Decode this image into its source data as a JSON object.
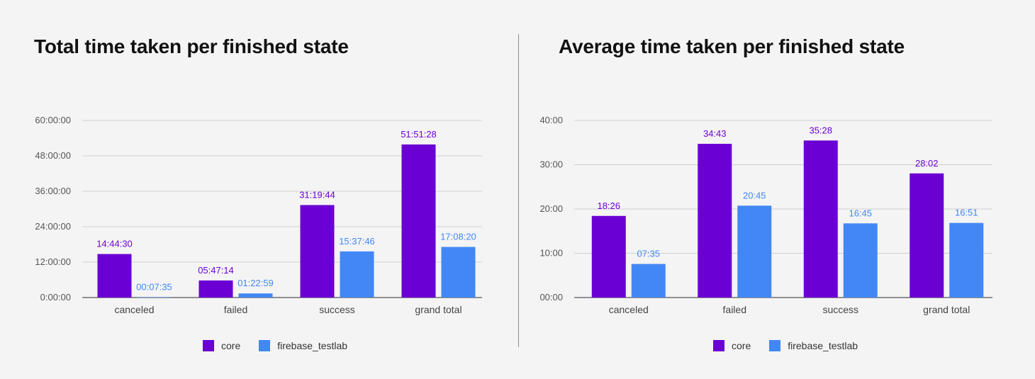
{
  "colors": {
    "core": "#6a00d4",
    "firebase_testlab": "#4287f5"
  },
  "legend": {
    "items": [
      {
        "label": "core",
        "color": "#6a00d4"
      },
      {
        "label": "firebase_testlab",
        "color": "#4287f5"
      }
    ]
  },
  "chart_data": [
    {
      "type": "bar",
      "title": "Total time taken per finished state",
      "categories": [
        "canceled",
        "failed",
        "success",
        "grand total"
      ],
      "yticks": [
        "0:00:00",
        "12:00:00",
        "24:00:00",
        "36:00:00",
        "48:00:00",
        "60:00:00"
      ],
      "ylim": [
        0,
        60
      ],
      "grid": true,
      "legend_position": "bottom",
      "series": [
        {
          "name": "core",
          "color": "#6a00d4",
          "values": [
            14.742,
            5.787,
            31.329,
            51.858
          ],
          "labels": [
            "14:44:30",
            "05:47:14",
            "31:19:44",
            "51:51:28"
          ]
        },
        {
          "name": "firebase_testlab",
          "color": "#4287f5",
          "values": [
            0.126,
            1.383,
            15.629,
            17.139
          ],
          "labels": [
            "00:07:35",
            "01:22:59",
            "15:37:46",
            "17:08:20"
          ]
        }
      ]
    },
    {
      "type": "bar",
      "title": "Average time taken per finished state",
      "categories": [
        "canceled",
        "failed",
        "success",
        "grand total"
      ],
      "yticks": [
        "00:00",
        "10:00",
        "20:00",
        "30:00",
        "40:00"
      ],
      "ylim": [
        0,
        40
      ],
      "grid": true,
      "legend_position": "bottom",
      "series": [
        {
          "name": "core",
          "color": "#6a00d4",
          "values": [
            18.433,
            34.717,
            35.467,
            28.033
          ],
          "labels": [
            "18:26",
            "34:43",
            "35:28",
            "28:02"
          ]
        },
        {
          "name": "firebase_testlab",
          "color": "#4287f5",
          "values": [
            7.583,
            20.75,
            16.75,
            16.85
          ],
          "labels": [
            "07:35",
            "20:45",
            "16:45",
            "16:51"
          ]
        }
      ]
    }
  ]
}
